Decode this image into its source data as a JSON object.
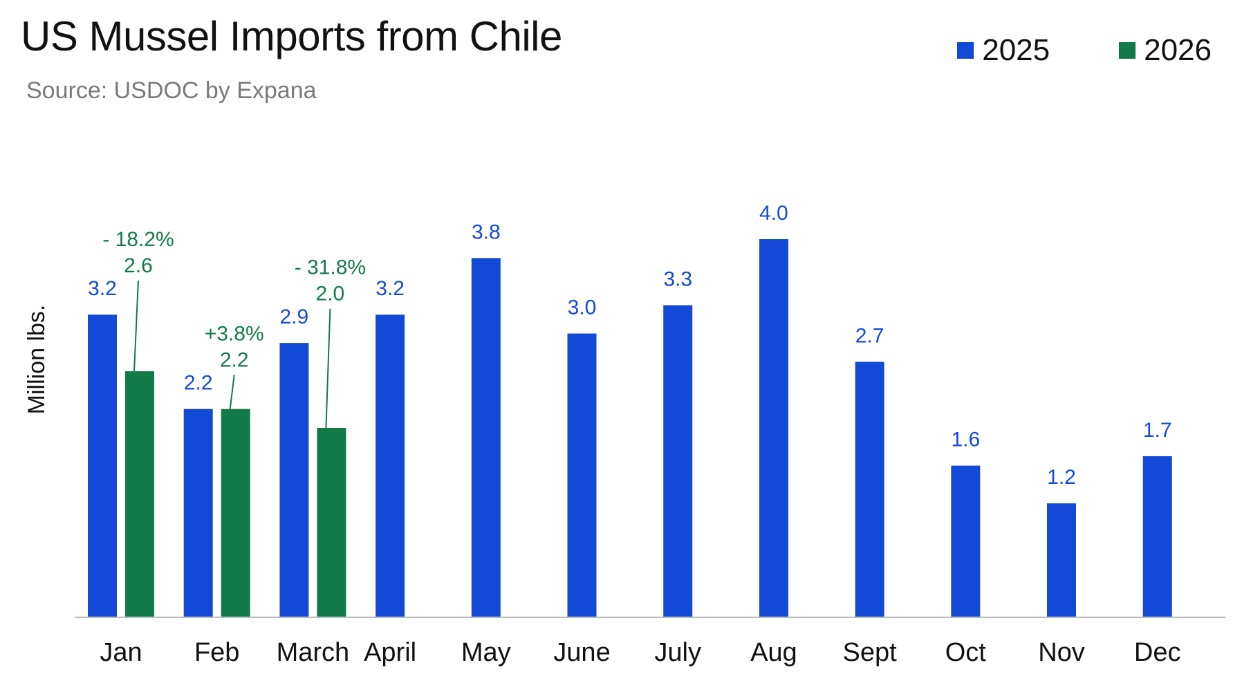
{
  "chart_data": {
    "type": "bar",
    "title": "US Mussel Imports from Chile",
    "subtitle": "Source: USDOC by Expana",
    "ylabel": "Million lbs.",
    "xlabel": "",
    "categories": [
      "Jan",
      "Feb",
      "March",
      "April",
      "May",
      "June",
      "July",
      "Aug",
      "Sept",
      "Oct",
      "Nov",
      "Dec"
    ],
    "series": [
      {
        "name": "2025",
        "color": "#1249d6",
        "values": [
          3.2,
          2.2,
          2.9,
          3.2,
          3.8,
          3.0,
          3.3,
          4.0,
          2.7,
          1.6,
          1.2,
          1.7
        ],
        "labels": [
          "3.2",
          "2.2",
          "2.9",
          "3.2",
          "3.8",
          "3.0",
          "3.3",
          "4.0",
          "2.7",
          "1.6",
          "1.2",
          "1.7"
        ]
      },
      {
        "name": "2026",
        "color": "#127a48",
        "values": [
          2.6,
          2.2,
          2.0,
          null,
          null,
          null,
          null,
          null,
          null,
          null,
          null,
          null
        ],
        "labels": [
          "2.6",
          "2.2",
          "2.0",
          null,
          null,
          null,
          null,
          null,
          null,
          null,
          null,
          null
        ],
        "changes": [
          "- 18.2%",
          "+3.8%",
          "- 31.8%",
          null,
          null,
          null,
          null,
          null,
          null,
          null,
          null,
          null
        ]
      }
    ],
    "ylim": [
      0,
      4.0
    ],
    "grid": false,
    "legend_position": "top-right"
  }
}
